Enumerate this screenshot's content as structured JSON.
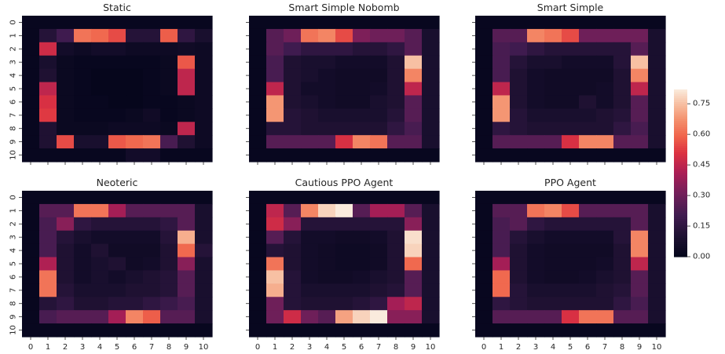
{
  "chart_data": {
    "type": "heatmap",
    "x_ticks": [
      "0",
      "1",
      "2",
      "3",
      "4",
      "5",
      "6",
      "7",
      "8",
      "9",
      "10"
    ],
    "y_ticks": [
      "0",
      "1",
      "2",
      "3",
      "4",
      "5",
      "6",
      "7",
      "8",
      "9",
      "10"
    ],
    "colorbar": {
      "vmin": 0,
      "vmax": 0.82,
      "ticks": [
        {
          "value": 0.0,
          "label": "0.00"
        },
        {
          "value": 0.15,
          "label": "0.15"
        },
        {
          "value": 0.3,
          "label": "0.30"
        },
        {
          "value": 0.45,
          "label": "0.45"
        },
        {
          "value": 0.6,
          "label": "0.60"
        },
        {
          "value": 0.75,
          "label": "0.75"
        }
      ]
    },
    "panels": [
      {
        "title": "Static",
        "z": [
          [
            0.02,
            0.02,
            0.02,
            0.02,
            0.02,
            0.02,
            0.02,
            0.02,
            0.02,
            0.02,
            0.02
          ],
          [
            0.02,
            0.12,
            0.2,
            0.62,
            0.6,
            0.55,
            0.12,
            0.12,
            0.58,
            0.15,
            0.08
          ],
          [
            0.02,
            0.48,
            0.06,
            0.04,
            0.06,
            0.06,
            0.04,
            0.04,
            0.04,
            0.05,
            0.04
          ],
          [
            0.02,
            0.08,
            0.03,
            0.02,
            0.02,
            0.02,
            0.02,
            0.02,
            0.03,
            0.57,
            0.04
          ],
          [
            0.02,
            0.1,
            0.03,
            0.02,
            0.01,
            0.01,
            0.01,
            0.02,
            0.03,
            0.45,
            0.04
          ],
          [
            0.02,
            0.45,
            0.03,
            0.02,
            0.01,
            0.01,
            0.01,
            0.02,
            0.03,
            0.45,
            0.04
          ],
          [
            0.02,
            0.5,
            0.03,
            0.02,
            0.02,
            0.01,
            0.01,
            0.02,
            0.02,
            0.03,
            0.04
          ],
          [
            0.02,
            0.52,
            0.03,
            0.02,
            0.02,
            0.02,
            0.03,
            0.05,
            0.02,
            0.03,
            0.04
          ],
          [
            0.02,
            0.1,
            0.03,
            0.03,
            0.03,
            0.04,
            0.04,
            0.04,
            0.03,
            0.45,
            0.04
          ],
          [
            0.02,
            0.1,
            0.55,
            0.08,
            0.08,
            0.57,
            0.6,
            0.62,
            0.22,
            0.1,
            0.04
          ],
          [
            0.02,
            0.02,
            0.02,
            0.02,
            0.02,
            0.02,
            0.06,
            0.06,
            0.02,
            0.02,
            0.02
          ]
        ]
      },
      {
        "title": "Smart Simple Nobomb",
        "z": [
          [
            0.02,
            0.02,
            0.02,
            0.02,
            0.02,
            0.02,
            0.02,
            0.02,
            0.02,
            0.02,
            0.02
          ],
          [
            0.02,
            0.25,
            0.3,
            0.62,
            0.65,
            0.55,
            0.33,
            0.3,
            0.3,
            0.25,
            0.08
          ],
          [
            0.02,
            0.25,
            0.2,
            0.15,
            0.15,
            0.15,
            0.12,
            0.12,
            0.15,
            0.25,
            0.08
          ],
          [
            0.02,
            0.22,
            0.1,
            0.08,
            0.08,
            0.06,
            0.06,
            0.06,
            0.1,
            0.75,
            0.08
          ],
          [
            0.02,
            0.22,
            0.1,
            0.08,
            0.06,
            0.05,
            0.05,
            0.05,
            0.1,
            0.65,
            0.08
          ],
          [
            0.02,
            0.45,
            0.1,
            0.06,
            0.06,
            0.05,
            0.05,
            0.06,
            0.1,
            0.45,
            0.08
          ],
          [
            0.02,
            0.68,
            0.1,
            0.08,
            0.06,
            0.05,
            0.05,
            0.08,
            0.1,
            0.25,
            0.08
          ],
          [
            0.02,
            0.68,
            0.12,
            0.1,
            0.08,
            0.08,
            0.08,
            0.08,
            0.12,
            0.25,
            0.08
          ],
          [
            0.02,
            0.12,
            0.12,
            0.1,
            0.1,
            0.1,
            0.1,
            0.1,
            0.15,
            0.22,
            0.08
          ],
          [
            0.02,
            0.25,
            0.25,
            0.25,
            0.25,
            0.5,
            0.65,
            0.62,
            0.25,
            0.25,
            0.08
          ],
          [
            0.02,
            0.02,
            0.02,
            0.02,
            0.02,
            0.02,
            0.02,
            0.02,
            0.02,
            0.02,
            0.02
          ]
        ]
      },
      {
        "title": "Smart Simple",
        "z": [
          [
            0.02,
            0.02,
            0.02,
            0.02,
            0.02,
            0.02,
            0.02,
            0.02,
            0.02,
            0.02,
            0.02
          ],
          [
            0.02,
            0.25,
            0.25,
            0.65,
            0.62,
            0.55,
            0.3,
            0.3,
            0.3,
            0.3,
            0.08
          ],
          [
            0.02,
            0.22,
            0.2,
            0.15,
            0.12,
            0.12,
            0.12,
            0.12,
            0.12,
            0.25,
            0.08
          ],
          [
            0.02,
            0.22,
            0.12,
            0.08,
            0.08,
            0.06,
            0.06,
            0.06,
            0.12,
            0.75,
            0.08
          ],
          [
            0.02,
            0.22,
            0.1,
            0.06,
            0.05,
            0.05,
            0.05,
            0.05,
            0.1,
            0.65,
            0.08
          ],
          [
            0.02,
            0.45,
            0.1,
            0.06,
            0.05,
            0.05,
            0.05,
            0.06,
            0.1,
            0.45,
            0.08
          ],
          [
            0.02,
            0.68,
            0.1,
            0.06,
            0.05,
            0.05,
            0.1,
            0.06,
            0.1,
            0.25,
            0.08
          ],
          [
            0.02,
            0.68,
            0.12,
            0.08,
            0.08,
            0.08,
            0.08,
            0.1,
            0.12,
            0.25,
            0.08
          ],
          [
            0.02,
            0.15,
            0.12,
            0.1,
            0.1,
            0.1,
            0.1,
            0.1,
            0.15,
            0.22,
            0.08
          ],
          [
            0.02,
            0.25,
            0.25,
            0.25,
            0.25,
            0.5,
            0.65,
            0.65,
            0.25,
            0.25,
            0.08
          ],
          [
            0.02,
            0.02,
            0.02,
            0.02,
            0.02,
            0.02,
            0.02,
            0.02,
            0.02,
            0.02,
            0.02
          ]
        ]
      },
      {
        "title": "Neoteric",
        "z": [
          [
            0.02,
            0.02,
            0.02,
            0.02,
            0.02,
            0.02,
            0.02,
            0.02,
            0.02,
            0.02,
            0.02
          ],
          [
            0.02,
            0.25,
            0.25,
            0.62,
            0.62,
            0.4,
            0.25,
            0.25,
            0.25,
            0.25,
            0.08
          ],
          [
            0.02,
            0.22,
            0.35,
            0.15,
            0.12,
            0.12,
            0.12,
            0.12,
            0.15,
            0.25,
            0.08
          ],
          [
            0.02,
            0.22,
            0.12,
            0.08,
            0.06,
            0.06,
            0.06,
            0.06,
            0.12,
            0.72,
            0.08
          ],
          [
            0.02,
            0.22,
            0.1,
            0.06,
            0.1,
            0.05,
            0.05,
            0.05,
            0.1,
            0.6,
            0.12
          ],
          [
            0.02,
            0.42,
            0.1,
            0.06,
            0.08,
            0.1,
            0.05,
            0.06,
            0.1,
            0.35,
            0.08
          ],
          [
            0.02,
            0.62,
            0.1,
            0.06,
            0.08,
            0.06,
            0.08,
            0.1,
            0.12,
            0.25,
            0.08
          ],
          [
            0.02,
            0.62,
            0.12,
            0.08,
            0.08,
            0.08,
            0.1,
            0.1,
            0.12,
            0.25,
            0.08
          ],
          [
            0.02,
            0.12,
            0.15,
            0.1,
            0.1,
            0.12,
            0.12,
            0.15,
            0.18,
            0.22,
            0.08
          ],
          [
            0.02,
            0.22,
            0.25,
            0.25,
            0.25,
            0.4,
            0.65,
            0.58,
            0.25,
            0.25,
            0.08
          ],
          [
            0.02,
            0.02,
            0.02,
            0.02,
            0.02,
            0.02,
            0.02,
            0.02,
            0.02,
            0.02,
            0.02
          ]
        ]
      },
      {
        "title": "Cautious PPO Agent",
        "z": [
          [
            0.02,
            0.02,
            0.02,
            0.02,
            0.02,
            0.02,
            0.02,
            0.02,
            0.02,
            0.02,
            0.02
          ],
          [
            0.02,
            0.45,
            0.25,
            0.65,
            0.78,
            0.82,
            0.25,
            0.4,
            0.4,
            0.25,
            0.08
          ],
          [
            0.02,
            0.48,
            0.35,
            0.12,
            0.12,
            0.12,
            0.12,
            0.12,
            0.12,
            0.35,
            0.08
          ],
          [
            0.02,
            0.25,
            0.12,
            0.06,
            0.06,
            0.05,
            0.05,
            0.06,
            0.1,
            0.8,
            0.08
          ],
          [
            0.02,
            0.12,
            0.1,
            0.06,
            0.05,
            0.04,
            0.04,
            0.05,
            0.1,
            0.78,
            0.08
          ],
          [
            0.02,
            0.62,
            0.1,
            0.06,
            0.05,
            0.04,
            0.04,
            0.05,
            0.1,
            0.6,
            0.08
          ],
          [
            0.02,
            0.75,
            0.12,
            0.06,
            0.05,
            0.05,
            0.06,
            0.08,
            0.1,
            0.25,
            0.08
          ],
          [
            0.02,
            0.72,
            0.12,
            0.08,
            0.08,
            0.08,
            0.08,
            0.1,
            0.12,
            0.25,
            0.08
          ],
          [
            0.02,
            0.3,
            0.12,
            0.1,
            0.1,
            0.1,
            0.12,
            0.15,
            0.4,
            0.45,
            0.08
          ],
          [
            0.02,
            0.3,
            0.48,
            0.3,
            0.25,
            0.7,
            0.78,
            0.82,
            0.35,
            0.35,
            0.08
          ],
          [
            0.02,
            0.02,
            0.02,
            0.02,
            0.02,
            0.02,
            0.02,
            0.02,
            0.02,
            0.02,
            0.02
          ]
        ]
      },
      {
        "title": "PPO Agent",
        "z": [
          [
            0.02,
            0.02,
            0.02,
            0.02,
            0.02,
            0.02,
            0.02,
            0.02,
            0.02,
            0.02,
            0.02
          ],
          [
            0.02,
            0.25,
            0.25,
            0.62,
            0.65,
            0.55,
            0.25,
            0.25,
            0.25,
            0.25,
            0.08
          ],
          [
            0.02,
            0.22,
            0.25,
            0.15,
            0.12,
            0.12,
            0.12,
            0.12,
            0.12,
            0.25,
            0.08
          ],
          [
            0.02,
            0.22,
            0.12,
            0.08,
            0.06,
            0.06,
            0.06,
            0.06,
            0.12,
            0.65,
            0.08
          ],
          [
            0.02,
            0.22,
            0.1,
            0.06,
            0.05,
            0.05,
            0.05,
            0.05,
            0.1,
            0.65,
            0.08
          ],
          [
            0.02,
            0.4,
            0.1,
            0.06,
            0.05,
            0.05,
            0.05,
            0.06,
            0.1,
            0.45,
            0.08
          ],
          [
            0.02,
            0.6,
            0.1,
            0.06,
            0.05,
            0.05,
            0.06,
            0.08,
            0.1,
            0.25,
            0.08
          ],
          [
            0.02,
            0.6,
            0.12,
            0.08,
            0.08,
            0.08,
            0.08,
            0.1,
            0.12,
            0.25,
            0.08
          ],
          [
            0.02,
            0.15,
            0.12,
            0.1,
            0.1,
            0.1,
            0.1,
            0.1,
            0.15,
            0.22,
            0.08
          ],
          [
            0.02,
            0.25,
            0.25,
            0.25,
            0.25,
            0.5,
            0.62,
            0.62,
            0.25,
            0.25,
            0.08
          ],
          [
            0.02,
            0.02,
            0.02,
            0.02,
            0.02,
            0.02,
            0.02,
            0.02,
            0.02,
            0.02,
            0.02
          ]
        ]
      }
    ]
  }
}
